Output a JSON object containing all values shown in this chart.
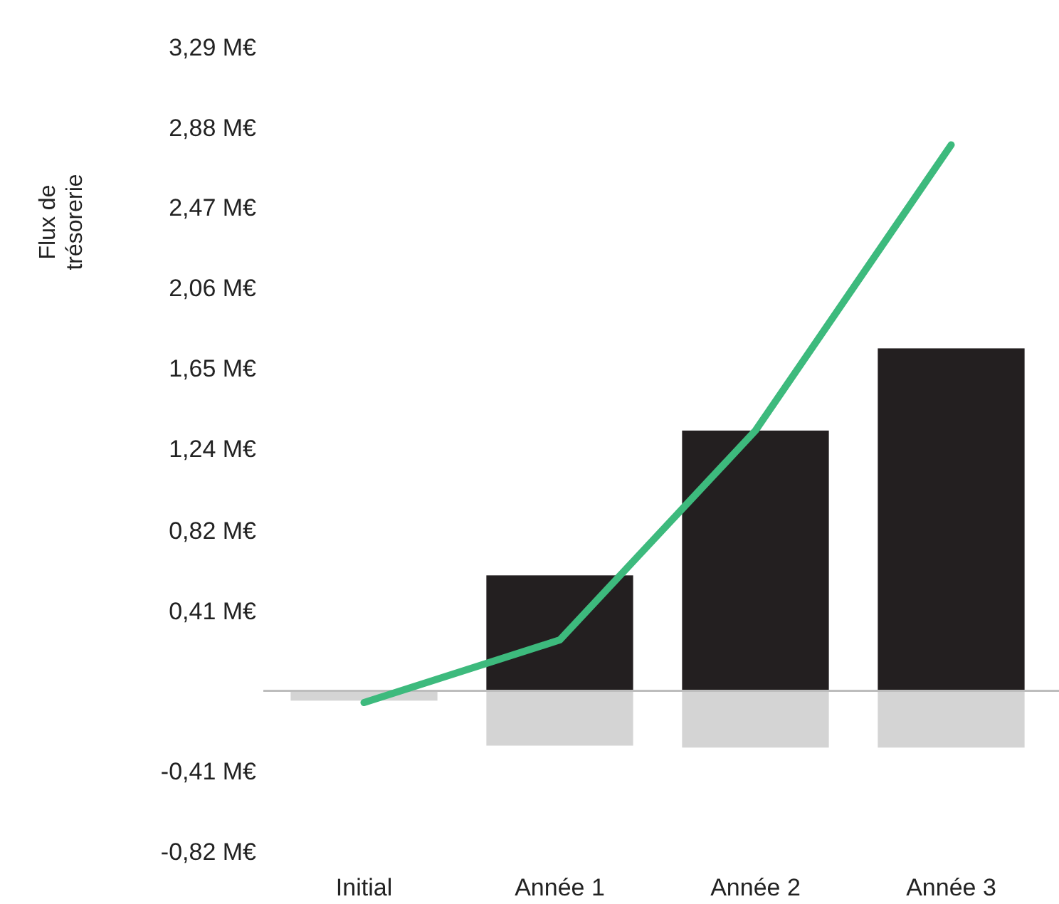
{
  "chart_data": {
    "type": "bar",
    "ylabel": "Flux de trésorerie",
    "categories": [
      "Initial",
      "Année 1",
      "Année 2",
      "Année 3"
    ],
    "stacked": true,
    "series": [
      {
        "color": "#231f20",
        "values": [
          0,
          0.59,
          1.33,
          1.75
        ]
      },
      {
        "color": "#d4d4d4",
        "values": [
          -0.05,
          -0.28,
          -0.29,
          -0.29
        ]
      },
      {
        "type": "line",
        "color": "#3dba7d",
        "values": [
          -0.06,
          0.26,
          1.33,
          2.79
        ]
      }
    ],
    "ylim": [
      -0.82,
      3.29
    ],
    "yticks": [
      {
        "value": -0.82,
        "label": "-0,82 M€"
      },
      {
        "value": -0.41,
        "label": "-0,41 M€"
      },
      {
        "value": 0.41,
        "label": "0,41 M€"
      },
      {
        "value": 0.82,
        "label": "0,82 M€"
      },
      {
        "value": 1.24,
        "label": "1,24 M€"
      },
      {
        "value": 1.65,
        "label": "1,65 M€"
      },
      {
        "value": 2.06,
        "label": "2,06 M€"
      },
      {
        "value": 2.47,
        "label": "2,47 M€"
      },
      {
        "value": 2.88,
        "label": "2,88 M€"
      },
      {
        "value": 3.29,
        "label": "3,29 M€"
      }
    ],
    "grid": false,
    "marker": "none",
    "line_style": "solid"
  }
}
